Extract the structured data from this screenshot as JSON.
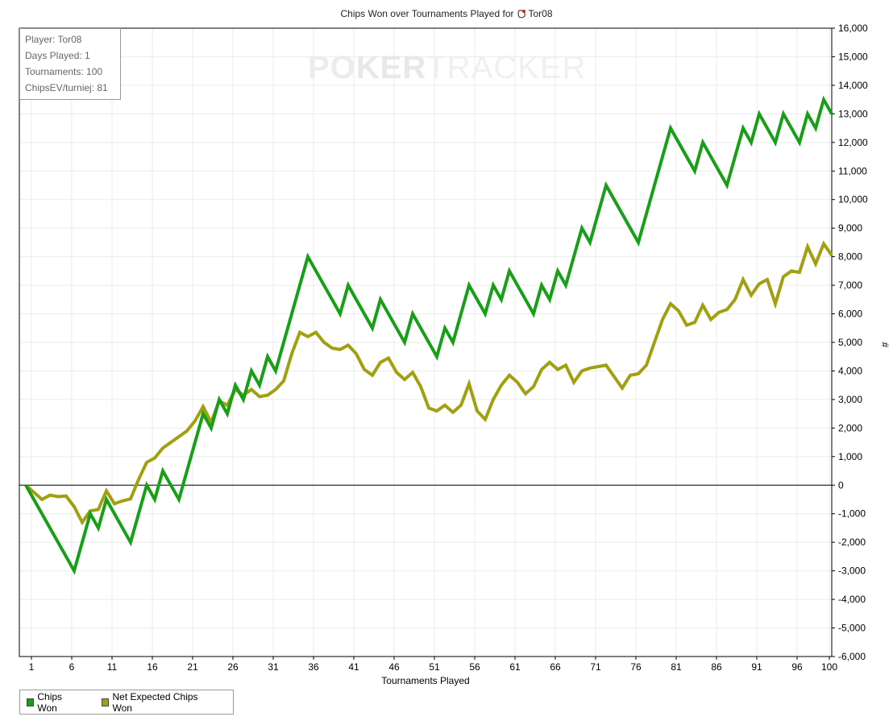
{
  "title_prefix": "Chips Won over Tournaments Played for",
  "player_name": "Tor08",
  "info_box": {
    "player": "Player: Tor08",
    "days": "Days Played: 1",
    "tournaments": "Tournaments: 100",
    "chips_ev": "ChipsEV/turniej: 81"
  },
  "watermark": "POKERTRACKER",
  "legend": [
    {
      "label": "Chips Won",
      "color": "#17a017"
    },
    {
      "label": "Net Expected Chips Won",
      "color": "#a0a011"
    }
  ],
  "chart_data": {
    "type": "line",
    "title": "Chips Won over Tournaments Played for Tor08",
    "xlabel": "Tournaments Played",
    "ylabel": "#",
    "xlim": [
      1,
      100
    ],
    "ylim": [
      -6000,
      16000
    ],
    "x_ticks": [
      "1",
      "6",
      "11",
      "16",
      "21",
      "26",
      "31",
      "36",
      "41",
      "46",
      "51",
      "56",
      "61",
      "66",
      "71",
      "76",
      "81",
      "86",
      "91",
      "96",
      "100"
    ],
    "y_ticks": [
      "-6,000",
      "-5,000",
      "-4,000",
      "-3,000",
      "-2,000",
      "-1,000",
      "0",
      "1,000",
      "2,000",
      "3,000",
      "4,000",
      "5,000",
      "6,000",
      "7,000",
      "8,000",
      "9,000",
      "10,000",
      "11,000",
      "12,000",
      "13,000",
      "14,000",
      "15,000",
      "16,000"
    ],
    "grid": true,
    "legend_position": "bottom-left",
    "series": [
      {
        "name": "Chips Won",
        "color": "#17a017",
        "points": [
          [
            0,
            0
          ],
          [
            6,
            -3000
          ],
          [
            8,
            -1000
          ],
          [
            9,
            -1500
          ],
          [
            10,
            -500
          ],
          [
            12,
            -1500
          ],
          [
            13,
            -2000
          ],
          [
            15,
            0
          ],
          [
            16,
            -500
          ],
          [
            17,
            500
          ],
          [
            19,
            -500
          ],
          [
            21,
            1500
          ],
          [
            22,
            2500
          ],
          [
            23,
            2000
          ],
          [
            24,
            3000
          ],
          [
            25,
            2500
          ],
          [
            26,
            3500
          ],
          [
            27,
            3000
          ],
          [
            28,
            4000
          ],
          [
            29,
            3500
          ],
          [
            30,
            4500
          ],
          [
            31,
            4000
          ],
          [
            35,
            8000
          ],
          [
            39,
            6000
          ],
          [
            40,
            7000
          ],
          [
            43,
            5500
          ],
          [
            44,
            6500
          ],
          [
            47,
            5000
          ],
          [
            48,
            6000
          ],
          [
            51,
            4500
          ],
          [
            52,
            5500
          ],
          [
            53,
            5000
          ],
          [
            55,
            7000
          ],
          [
            57,
            6000
          ],
          [
            58,
            7000
          ],
          [
            59,
            6500
          ],
          [
            60,
            7500
          ],
          [
            63,
            6000
          ],
          [
            64,
            7000
          ],
          [
            65,
            6500
          ],
          [
            66,
            7500
          ],
          [
            67,
            7000
          ],
          [
            69,
            9000
          ],
          [
            70,
            8500
          ],
          [
            72,
            10500
          ],
          [
            76,
            8500
          ],
          [
            80,
            12500
          ],
          [
            83,
            11000
          ],
          [
            84,
            12000
          ],
          [
            87,
            10500
          ],
          [
            89,
            12500
          ],
          [
            90,
            12000
          ],
          [
            91,
            13000
          ],
          [
            93,
            12000
          ],
          [
            94,
            13000
          ],
          [
            96,
            12000
          ],
          [
            97,
            13000
          ],
          [
            98,
            12500
          ],
          [
            99,
            13500
          ],
          [
            100,
            13000
          ]
        ]
      },
      {
        "name": "Net Expected Chips Won",
        "color": "#a0a011",
        "points": [
          [
            0,
            0
          ],
          [
            2,
            -500
          ],
          [
            3,
            -350
          ],
          [
            4,
            -400
          ],
          [
            5,
            -380
          ],
          [
            6,
            -750
          ],
          [
            7,
            -1300
          ],
          [
            8,
            -900
          ],
          [
            9,
            -850
          ],
          [
            10,
            -200
          ],
          [
            11,
            -650
          ],
          [
            12,
            -550
          ],
          [
            13,
            -480
          ],
          [
            14,
            200
          ],
          [
            15,
            800
          ],
          [
            16,
            950
          ],
          [
            17,
            1300
          ],
          [
            18,
            1500
          ],
          [
            19,
            1700
          ],
          [
            20,
            1900
          ],
          [
            21,
            2250
          ],
          [
            22,
            2750
          ],
          [
            23,
            2200
          ],
          [
            24,
            2950
          ],
          [
            25,
            2800
          ],
          [
            26,
            3350
          ],
          [
            27,
            3150
          ],
          [
            28,
            3350
          ],
          [
            29,
            3100
          ],
          [
            30,
            3150
          ],
          [
            31,
            3350
          ],
          [
            32,
            3650
          ],
          [
            33,
            4600
          ],
          [
            34,
            5350
          ],
          [
            35,
            5200
          ],
          [
            36,
            5350
          ],
          [
            37,
            5000
          ],
          [
            38,
            4800
          ],
          [
            39,
            4750
          ],
          [
            40,
            4900
          ],
          [
            41,
            4600
          ],
          [
            42,
            4050
          ],
          [
            43,
            3850
          ],
          [
            44,
            4300
          ],
          [
            45,
            4450
          ],
          [
            46,
            3950
          ],
          [
            47,
            3700
          ],
          [
            48,
            3950
          ],
          [
            49,
            3450
          ],
          [
            50,
            2700
          ],
          [
            51,
            2600
          ],
          [
            52,
            2800
          ],
          [
            53,
            2550
          ],
          [
            54,
            2800
          ],
          [
            55,
            3550
          ],
          [
            56,
            2600
          ],
          [
            57,
            2300
          ],
          [
            58,
            3000
          ],
          [
            59,
            3500
          ],
          [
            60,
            3850
          ],
          [
            61,
            3600
          ],
          [
            62,
            3200
          ],
          [
            63,
            3450
          ],
          [
            64,
            4050
          ],
          [
            65,
            4300
          ],
          [
            66,
            4050
          ],
          [
            67,
            4200
          ],
          [
            68,
            3600
          ],
          [
            69,
            4000
          ],
          [
            70,
            4100
          ],
          [
            71,
            4150
          ],
          [
            72,
            4200
          ],
          [
            73,
            3800
          ],
          [
            74,
            3400
          ],
          [
            75,
            3850
          ],
          [
            76,
            3900
          ],
          [
            77,
            4200
          ],
          [
            78,
            5000
          ],
          [
            79,
            5800
          ],
          [
            80,
            6350
          ],
          [
            81,
            6100
          ],
          [
            82,
            5600
          ],
          [
            83,
            5700
          ],
          [
            84,
            6300
          ],
          [
            85,
            5800
          ],
          [
            86,
            6050
          ],
          [
            87,
            6150
          ],
          [
            88,
            6500
          ],
          [
            89,
            7200
          ],
          [
            90,
            6650
          ],
          [
            91,
            7050
          ],
          [
            92,
            7200
          ],
          [
            93,
            6350
          ],
          [
            94,
            7300
          ],
          [
            95,
            7500
          ],
          [
            96,
            7450
          ],
          [
            97,
            8350
          ],
          [
            98,
            7750
          ],
          [
            99,
            8450
          ],
          [
            100,
            8050
          ]
        ]
      }
    ]
  }
}
